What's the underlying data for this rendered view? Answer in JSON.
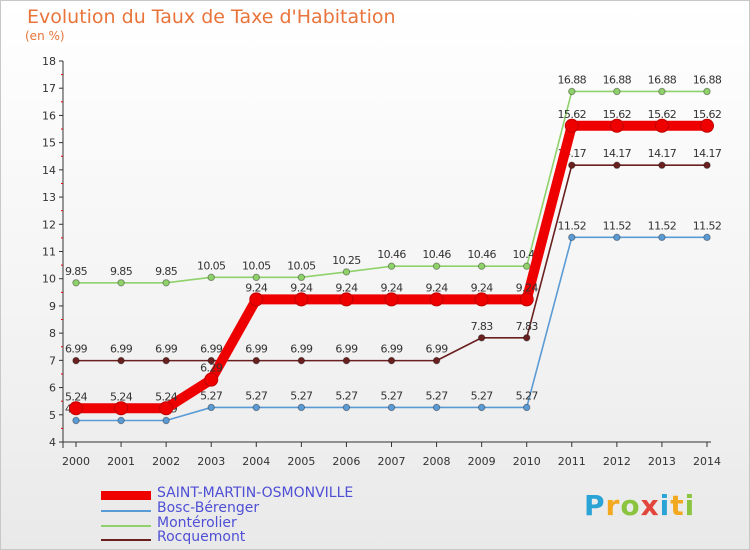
{
  "title": "Evolution du Taux de Taxe d'Habitation",
  "unit_label": "(en %)",
  "logo_text": "Proxiti",
  "chart_data": {
    "type": "line",
    "title": "Evolution du Taux de Taxe d'Habitation",
    "ylabel": "(en %)",
    "xlabel": "",
    "ylim": [
      4,
      18
    ],
    "yticks": [
      4,
      5,
      6,
      7,
      8,
      9,
      10,
      11,
      12,
      13,
      14,
      15,
      16,
      17,
      18
    ],
    "x": [
      "2000",
      "2001",
      "2002",
      "2003",
      "2004",
      "2005",
      "2006",
      "2007",
      "2008",
      "2009",
      "2010",
      "2011",
      "2012",
      "2013",
      "2014"
    ],
    "grid": false,
    "legend_position": "bottom-left",
    "series": [
      {
        "name": "SAINT-MARTIN-OSMONVILLE",
        "color": "#ee0000",
        "values": [
          5.24,
          5.24,
          5.24,
          6.29,
          9.24,
          9.24,
          9.24,
          9.24,
          9.24,
          9.24,
          9.24,
          15.62,
          15.62,
          15.62,
          15.62
        ],
        "labels": [
          "5.24",
          "5.24",
          "5.24",
          "6.29",
          "9.24",
          "9.24",
          "9.24",
          "9.24",
          "9.24",
          "9.24",
          "9.24",
          "15.62",
          "15.62",
          "15.62",
          "15.62"
        ]
      },
      {
        "name": "Bosc-Bérenger",
        "color": "#5b9bd5",
        "values": [
          4.79,
          4.79,
          4.79,
          5.27,
          5.27,
          5.27,
          5.27,
          5.27,
          5.27,
          5.27,
          5.27,
          11.52,
          11.52,
          11.52,
          11.52
        ],
        "labels": [
          "4.79",
          "4.79",
          "4.79",
          "5.27",
          "5.27",
          "5.27",
          "5.27",
          "5.27",
          "5.27",
          "5.27",
          "5.27",
          "11.52",
          "11.52",
          "11.52",
          "11.52"
        ]
      },
      {
        "name": "Montérolier",
        "color": "#8fd16a",
        "values": [
          9.85,
          9.85,
          9.85,
          10.05,
          10.05,
          10.05,
          10.25,
          10.46,
          10.46,
          10.46,
          10.46,
          16.88,
          16.88,
          16.88,
          16.88
        ],
        "labels": [
          "9.85",
          "9.85",
          "9.85",
          "10.05",
          "10.05",
          "10.05",
          "10.25",
          "10.46",
          "10.46",
          "10.46",
          "10.46",
          "16.88",
          "16.88",
          "16.88",
          "16.88"
        ]
      },
      {
        "name": "Rocquemont",
        "color": "#6b2020",
        "values": [
          6.99,
          6.99,
          6.99,
          6.99,
          6.99,
          6.99,
          6.99,
          6.99,
          6.99,
          7.83,
          7.83,
          14.17,
          14.17,
          14.17,
          14.17
        ],
        "labels": [
          "6.99",
          "6.99",
          "6.99",
          "6.99",
          "6.99",
          "6.99",
          "6.99",
          "6.99",
          "6.99",
          "7.83",
          "7.83",
          "14.17",
          "14.17",
          "14.17",
          "14.17"
        ]
      }
    ]
  }
}
